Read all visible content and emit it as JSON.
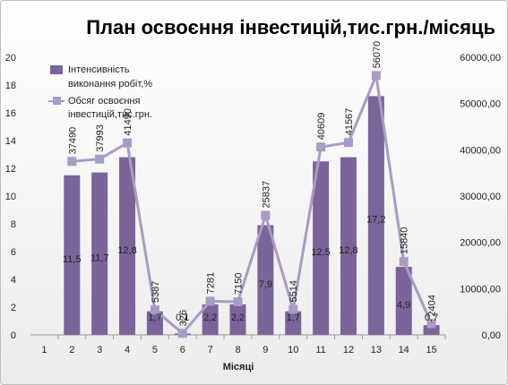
{
  "chart_data": {
    "type": "bar",
    "title": "План освоєння інвестицій,тис.грн./місяць",
    "xlabel": "Місяці",
    "categories": [
      "1",
      "2",
      "3",
      "4",
      "5",
      "6",
      "7",
      "8",
      "9",
      "10",
      "11",
      "12",
      "13",
      "14",
      "15"
    ],
    "left_axis": {
      "min": 0,
      "max": 20,
      "step": 2,
      "ticks": [
        "0",
        "2",
        "4",
        "6",
        "8",
        "10",
        "12",
        "14",
        "16",
        "18",
        "20"
      ]
    },
    "right_axis": {
      "min": 0,
      "max": 60000,
      "step": 10000,
      "ticks": [
        "0,00",
        "10000,00",
        "20000,00",
        "30000,00",
        "40000,00",
        "50000,00",
        "60000,00"
      ]
    },
    "series": [
      {
        "name": "Інтенсивність виконання робіт,%",
        "type": "bar",
        "axis": "left",
        "color": "#7a649a",
        "values": [
          null,
          11.5,
          11.7,
          12.8,
          1.7,
          0.1,
          2.2,
          2.2,
          7.9,
          1.7,
          12.5,
          12.8,
          17.2,
          4.9,
          0.7
        ],
        "labels": [
          "",
          "11,5",
          "11,7",
          "12,8",
          "1,7",
          "0,1",
          "2,2",
          "2,2",
          "7,9",
          "1,7",
          "12,5",
          "12,8",
          "17,2",
          "4,9",
          "0,7"
        ]
      },
      {
        "name": "Обсяг освоєння інвестицій,тис.грн.",
        "type": "line",
        "axis": "right",
        "color": "#a99bc2",
        "values": [
          null,
          37490,
          37993,
          41490,
          5387,
          326,
          7281,
          7150,
          25837,
          5514,
          40609,
          41567,
          56070,
          15840,
          2404
        ],
        "labels": [
          "",
          "37490",
          "37993",
          "41490",
          "5387",
          "326",
          "7281",
          "7150",
          "25837",
          "5514",
          "40609",
          "41567",
          "56070",
          "15840",
          "2404"
        ]
      }
    ],
    "legend_position": "top-left",
    "grid": false
  }
}
